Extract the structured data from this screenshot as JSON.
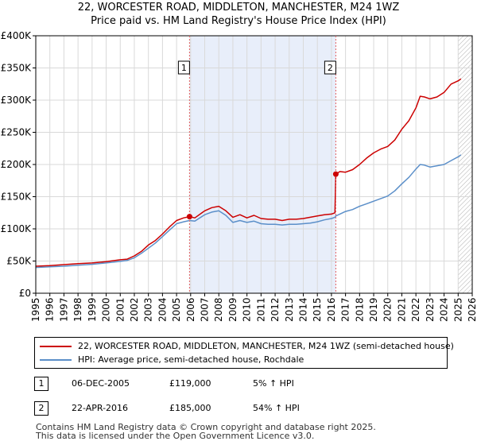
{
  "title_line1": "22, WORCESTER ROAD, MIDDLETON, MANCHESTER, M24 1WZ",
  "title_line2": "Price paid vs. HM Land Registry's House Price Index (HPI)",
  "colors": {
    "property": "#cc0000",
    "hpi": "#5b8fc9",
    "shade": "#e8eefa",
    "marker_line": "#e06060"
  },
  "chart_data": {
    "type": "line",
    "xlim": [
      1995,
      2026
    ],
    "ylim": [
      0,
      400000
    ],
    "y_ticks": [
      0,
      50000,
      100000,
      150000,
      200000,
      250000,
      300000,
      350000,
      400000
    ],
    "y_tick_labels": [
      "£0",
      "£50K",
      "£100K",
      "£150K",
      "£200K",
      "£250K",
      "£300K",
      "£350K",
      "£400K"
    ],
    "x_ticks": [
      1995,
      1996,
      1997,
      1998,
      1999,
      2000,
      2001,
      2002,
      2003,
      2004,
      2005,
      2006,
      2007,
      2008,
      2009,
      2010,
      2011,
      2012,
      2013,
      2014,
      2015,
      2016,
      2017,
      2018,
      2019,
      2020,
      2021,
      2022,
      2023,
      2024,
      2025,
      2026
    ],
    "x_tick_labels": [
      "1995",
      "1996",
      "1997",
      "1998",
      "1999",
      "2000",
      "2001",
      "2002",
      "2003",
      "2004",
      "2005",
      "2006",
      "2007",
      "2008",
      "2009",
      "2010",
      "2011",
      "2012",
      "2013",
      "2014",
      "2015",
      "2016",
      "2017",
      "2018",
      "2019",
      "2020",
      "2021",
      "2022",
      "2023",
      "2024",
      "2025",
      "2026"
    ],
    "shaded_region": [
      2005.92,
      2016.31
    ],
    "forecast_start": 2025.0,
    "series": [
      {
        "name": "22, WORCESTER ROAD, MIDDLETON, MANCHESTER, M24 1WZ (semi-detached house)",
        "color": "#cc0000",
        "x": [
          1995.0,
          1996.0,
          1997.0,
          1998.0,
          1999.0,
          2000.0,
          2001.0,
          2001.5,
          2002.0,
          2002.5,
          2003.0,
          2003.5,
          2004.0,
          2004.5,
          2005.0,
          2005.5,
          2005.92,
          2006.3,
          2007.0,
          2007.5,
          2008.0,
          2008.5,
          2009.0,
          2009.5,
          2010.0,
          2010.5,
          2011.0,
          2011.5,
          2012.0,
          2012.5,
          2013.0,
          2013.5,
          2014.0,
          2014.5,
          2015.0,
          2015.5,
          2016.0,
          2016.25,
          2016.31,
          2016.6,
          2017.0,
          2017.5,
          2018.0,
          2018.5,
          2019.0,
          2019.5,
          2020.0,
          2020.5,
          2021.0,
          2021.5,
          2022.0,
          2022.3,
          2022.6,
          2023.0,
          2023.5,
          2024.0,
          2024.5,
          2025.0,
          2025.2
        ],
        "values": [
          42000,
          43000,
          44500,
          46000,
          47000,
          49000,
          52000,
          53000,
          58000,
          65000,
          75000,
          82000,
          92000,
          103000,
          113000,
          117000,
          119000,
          117000,
          128000,
          133000,
          135000,
          128000,
          118000,
          122000,
          117000,
          121000,
          116000,
          115000,
          115000,
          113000,
          115000,
          115000,
          116000,
          118000,
          120000,
          122000,
          123000,
          125000,
          185000,
          189000,
          188000,
          192000,
          200000,
          210000,
          218000,
          224000,
          228000,
          238000,
          255000,
          268000,
          288000,
          306000,
          305000,
          302000,
          305000,
          312000,
          325000,
          330000,
          333000
        ]
      },
      {
        "name": "HPI: Average price, semi-detached house, Rochdale",
        "color": "#5b8fc9",
        "x": [
          1995.0,
          1996.0,
          1997.0,
          1998.0,
          1999.0,
          2000.0,
          2001.0,
          2001.5,
          2002.0,
          2002.5,
          2003.0,
          2003.5,
          2004.0,
          2004.5,
          2005.0,
          2005.5,
          2005.92,
          2006.3,
          2007.0,
          2007.5,
          2008.0,
          2008.5,
          2009.0,
          2009.5,
          2010.0,
          2010.5,
          2011.0,
          2011.5,
          2012.0,
          2012.5,
          2013.0,
          2013.5,
          2014.0,
          2014.5,
          2015.0,
          2015.5,
          2016.0,
          2016.25,
          2016.31,
          2016.6,
          2017.0,
          2017.5,
          2018.0,
          2018.5,
          2019.0,
          2019.5,
          2020.0,
          2020.5,
          2021.0,
          2021.5,
          2022.0,
          2022.3,
          2022.6,
          2023.0,
          2023.5,
          2024.0,
          2024.5,
          2025.0,
          2025.2
        ],
        "values": [
          40000,
          41000,
          42000,
          43500,
          45000,
          47000,
          49500,
          51000,
          55000,
          62000,
          70000,
          78000,
          88000,
          98000,
          108000,
          111000,
          113000,
          112000,
          122000,
          126000,
          128000,
          121000,
          110000,
          113000,
          110000,
          112000,
          108000,
          107000,
          107000,
          106000,
          107000,
          107000,
          108000,
          109000,
          111000,
          114000,
          116000,
          118000,
          120000,
          123000,
          127000,
          130000,
          135000,
          139000,
          143000,
          147000,
          151000,
          159000,
          170000,
          180000,
          193000,
          200000,
          199000,
          196000,
          198000,
          200000,
          206000,
          212000,
          215000
        ]
      }
    ],
    "markers": [
      {
        "label": "1",
        "x": 2005.92,
        "y": 119000
      },
      {
        "label": "2",
        "x": 2016.31,
        "y": 185000
      }
    ]
  },
  "legend": {
    "property_label": "22, WORCESTER ROAD, MIDDLETON, MANCHESTER, M24 1WZ (semi-detached house)",
    "hpi_label": "HPI: Average price, semi-detached house, Rochdale"
  },
  "sales": [
    {
      "num": "1",
      "date": "06-DEC-2005",
      "price": "£119,000",
      "hpi": "5% ↑ HPI"
    },
    {
      "num": "2",
      "date": "22-APR-2016",
      "price": "£185,000",
      "hpi": "54% ↑ HPI"
    }
  ],
  "footer_line1": "Contains HM Land Registry data © Crown copyright and database right 2025.",
  "footer_line2": "This data is licensed under the Open Government Licence v3.0."
}
